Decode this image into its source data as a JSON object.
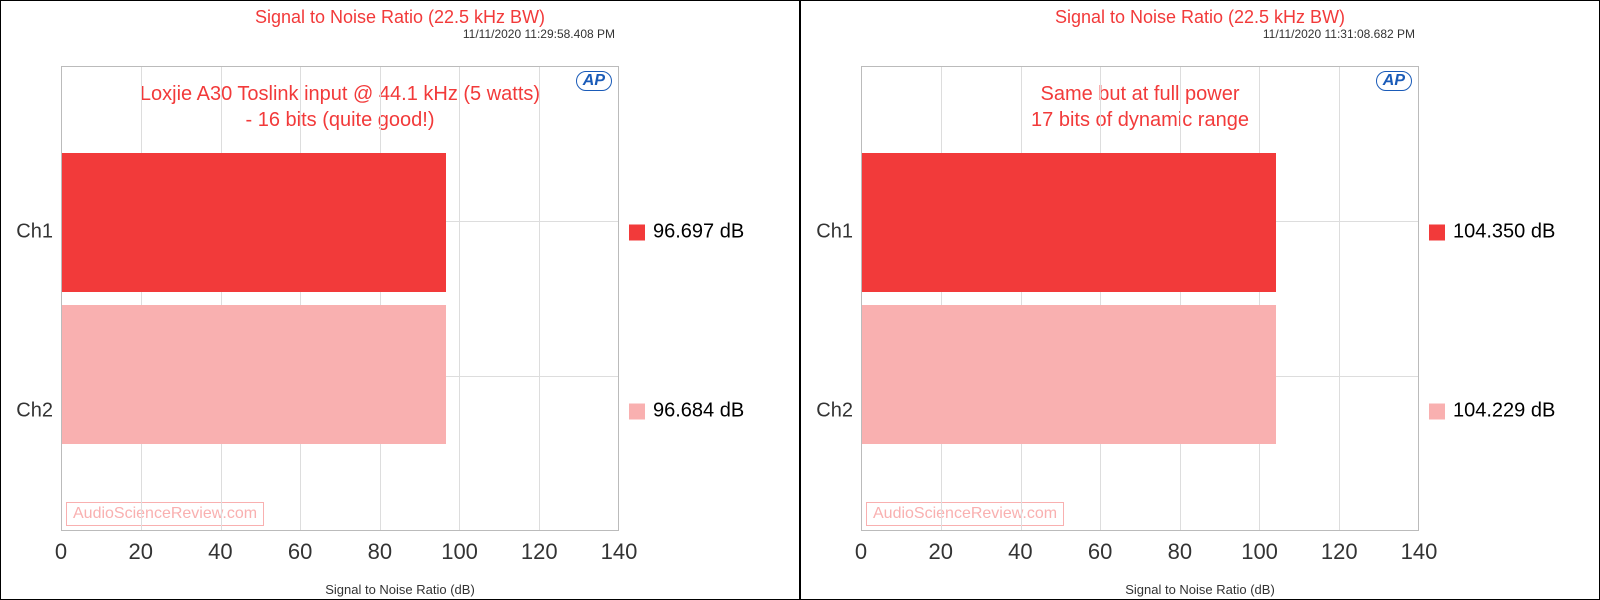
{
  "colors": {
    "accent": "#f23a3a",
    "bar1": "#f23a3a",
    "bar2": "#f9b0b0",
    "grid": "#dddddd",
    "border": "#bbbbbb",
    "text": "#333333",
    "ap": "#1a5bb8"
  },
  "panels": [
    {
      "title": "Signal to Noise Ratio (22.5 kHz BW)",
      "timestamp": "11/11/2020 11:29:58.408 PM",
      "annotation_line1": "Loxjie A30 Toslink input @ 44.1 kHz (5 watts)",
      "annotation_line2": "- 16 bits (quite good!)",
      "xlabel": "Signal to Noise Ratio (dB)",
      "xmin": 0,
      "xmax": 140,
      "xtick_step": 20,
      "categories": [
        "Ch1",
        "Ch2"
      ],
      "values": [
        96.697,
        96.684
      ],
      "legend_labels": [
        "96.697  dB",
        "96.684  dB"
      ],
      "watermark": "AudioScienceReview.com",
      "ap": "AP"
    },
    {
      "title": "Signal to Noise Ratio (22.5 kHz BW)",
      "timestamp": "11/11/2020 11:31:08.682 PM",
      "annotation_line1": "Same but at full power",
      "annotation_line2": "17 bits of dynamic range",
      "xlabel": "Signal to Noise Ratio (dB)",
      "xmin": 0,
      "xmax": 140,
      "xtick_step": 20,
      "categories": [
        "Ch1",
        "Ch2"
      ],
      "values": [
        104.35,
        104.229
      ],
      "legend_labels": [
        "104.350  dB",
        "104.229  dB"
      ],
      "watermark": "AudioScienceReview.com",
      "ap": "AP"
    }
  ]
}
